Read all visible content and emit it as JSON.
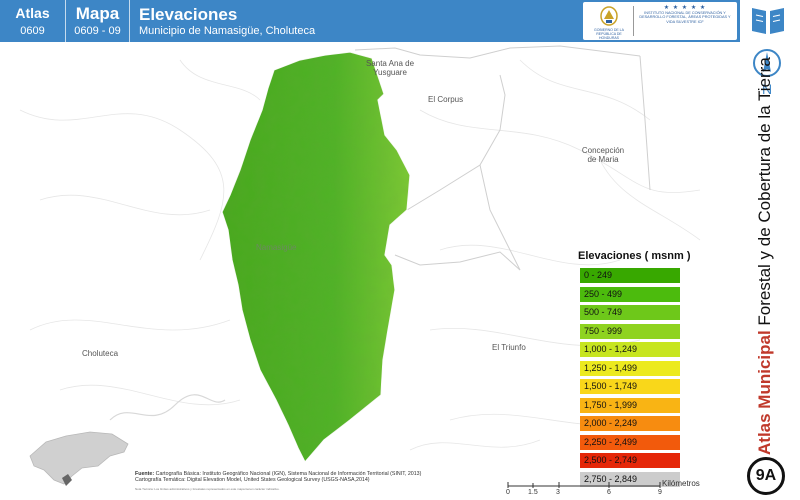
{
  "header": {
    "atlas_label": "Atlas",
    "atlas_code": "0609",
    "mapa_label": "Mapa",
    "mapa_code": "0609 - 09",
    "title": "Elevaciones",
    "subtitle": "Municipio de Namasigüe, Choluteca"
  },
  "logos": {
    "left_text": "GOBIERNO DE LA REPÚBLICA DE HONDURAS",
    "right_stars": "★ ★ ★ ★ ★",
    "right_text": "INSTITUTO NACIONAL DE CONSERVACIÓN Y DESARROLLO FORESTAL, ÁREAS PROTEGIDAS Y VIDA SILVESTRE ICF"
  },
  "sidebar": {
    "north_label": "N",
    "vertical_bold": "Atlas Municipal",
    "vertical_rest": "Forestal y de Cobertura de la Tierra",
    "badge": "9A"
  },
  "places": {
    "santa_ana": "Santa Ana de Yusguare",
    "el_corpus": "El Corpus",
    "concepcion": "Concepción de Maria",
    "namasigue": "Namasigüe",
    "choluteca": "Choluteca",
    "el_triunfo": "El Triunfo"
  },
  "legend": {
    "title": "Elevaciones ( msnm )",
    "items": [
      {
        "label": "0 - 249",
        "color": "#38a800"
      },
      {
        "label": "250 - 499",
        "color": "#4cbb0d"
      },
      {
        "label": "500 - 749",
        "color": "#6ec81a"
      },
      {
        "label": "750 - 999",
        "color": "#8fd320"
      },
      {
        "label": "1,000 - 1,249",
        "color": "#c7e51f"
      },
      {
        "label": "1,250 - 1,499",
        "color": "#ecea1e"
      },
      {
        "label": "1,500 - 1,749",
        "color": "#f9d71a"
      },
      {
        "label": "1,750 - 1,999",
        "color": "#f9b414"
      },
      {
        "label": "2,000 - 2,249",
        "color": "#f78c10"
      },
      {
        "label": "2,250 - 2,499",
        "color": "#f25a0c"
      },
      {
        "label": "2,500 - 2,749",
        "color": "#e52709"
      },
      {
        "label": "2,750 - 2,849",
        "color": "#cccccc"
      }
    ]
  },
  "footer": {
    "fuente_label": "Fuente:",
    "fuente_line1": "Cartografía Básica: Instituto Geográfico Nacional (IGN), Sistema Nacional de Información Territorial (SINIT, 2013)",
    "fuente_line2": "Cartografía Temática: Digital Elevation Model, United States Geological Survey (USGS-NASA,2014)",
    "nota": "Nota Técnica: Los límites administrativos y forestales representados en este mapa tienen carácter indicativo."
  },
  "scale": {
    "unit": "Kilómetros",
    "ticks": [
      "0",
      "1.5",
      "3",
      "6",
      "9"
    ]
  },
  "colors": {
    "header_blue": "#3d86c6",
    "municipio_green": "#4fb326",
    "accent_red": "#c0392b"
  }
}
